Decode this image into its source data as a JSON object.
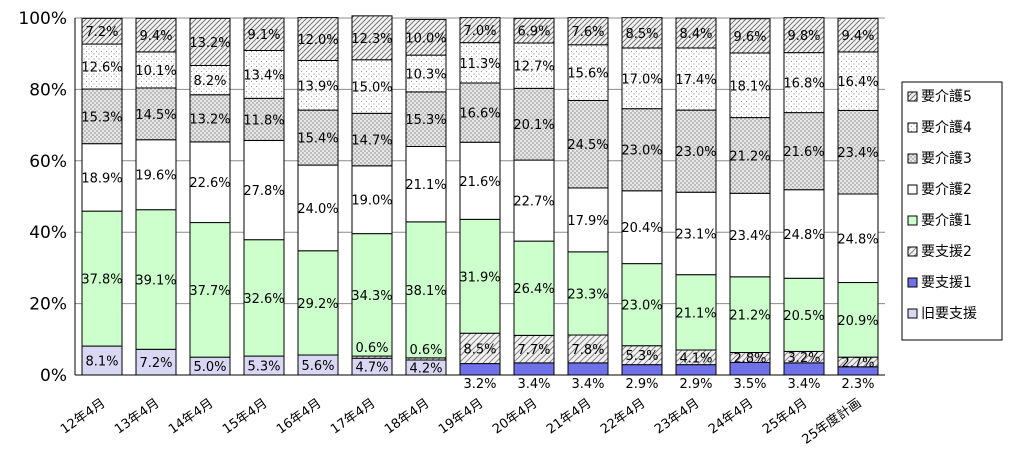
{
  "chart_data": {
    "type": "bar",
    "stacked": true,
    "percent": true,
    "categories": [
      "12年4月",
      "13年4月",
      "14年4月",
      "15年4月",
      "16年4月",
      "17年4月",
      "18年4月",
      "19年4月",
      "20年4月",
      "21年4月",
      "22年4月",
      "23年4月",
      "24年4月",
      "25年4月",
      "25年度計画"
    ],
    "series": [
      {
        "name": "旧要支援",
        "color": "#d8d8f4",
        "pattern": "solid",
        "values": [
          8.1,
          7.2,
          5.0,
          5.3,
          5.6,
          4.7,
          4.2,
          null,
          null,
          null,
          null,
          null,
          null,
          null,
          null
        ],
        "labels": [
          "8.1%",
          "7.2%",
          "5.0%",
          "5.3%",
          "5.6%",
          "4.7%",
          "4.2%",
          "",
          "",
          "",
          "",
          "",
          "",
          "",
          ""
        ]
      },
      {
        "name": "要支援1",
        "color": "#7070e8",
        "pattern": "solid",
        "values": [
          null,
          null,
          null,
          null,
          null,
          null,
          null,
          3.2,
          3.4,
          3.4,
          2.9,
          2.9,
          3.5,
          3.4,
          2.3
        ],
        "labels": [
          "",
          "",
          "",
          "",
          "",
          "",
          "",
          "3.2%",
          "3.4%",
          "3.4%",
          "2.9%",
          "2.9%",
          "3.5%",
          "3.4%",
          "2.3%"
        ]
      },
      {
        "name": "要支援2",
        "color": "#e8e8e8",
        "pattern": "hatch",
        "values": [
          null,
          null,
          null,
          null,
          null,
          0.6,
          0.6,
          8.5,
          7.7,
          7.8,
          5.3,
          4.1,
          2.8,
          3.2,
          2.7
        ],
        "labels": [
          "",
          "",
          "",
          "",
          "",
          "0.6%",
          "0.6%",
          "8.5%",
          "7.7%",
          "7.8%",
          "5.3%",
          "4.1%",
          "2.8%",
          "3.2%",
          "2.7%"
        ]
      },
      {
        "name": "要介護1",
        "color": "#ccffcc",
        "pattern": "solid",
        "values": [
          37.8,
          39.1,
          37.7,
          32.6,
          29.2,
          34.3,
          38.1,
          31.9,
          26.4,
          23.3,
          23.0,
          21.1,
          21.2,
          20.5,
          20.9
        ],
        "labels": [
          "37.8%",
          "39.1%",
          "37.7%",
          "32.6%",
          "29.2%",
          "34.3%",
          "38.1%",
          "31.9%",
          "26.4%",
          "23.3%",
          "23.0%",
          "21.1%",
          "21.2%",
          "20.5%",
          "20.9%"
        ]
      },
      {
        "name": "要介護2",
        "color": "#ffffff",
        "pattern": "solid",
        "values": [
          18.9,
          19.6,
          22.6,
          27.8,
          24.0,
          19.0,
          21.1,
          21.6,
          22.7,
          17.9,
          20.4,
          23.1,
          23.4,
          24.8,
          24.8
        ],
        "labels": [
          "18.9%",
          "19.6%",
          "22.6%",
          "27.8%",
          "24.0%",
          "19.0%",
          "21.1%",
          "21.6%",
          "22.7%",
          "17.9%",
          "20.4%",
          "23.1%",
          "23.4%",
          "24.8%",
          "24.8%"
        ]
      },
      {
        "name": "要介護3",
        "color": "#c8c8c8",
        "pattern": "grid",
        "values": [
          15.3,
          14.5,
          13.2,
          11.8,
          15.4,
          14.7,
          15.3,
          16.6,
          20.1,
          24.5,
          23.0,
          23.0,
          21.2,
          21.6,
          23.4
        ],
        "labels": [
          "15.3%",
          "14.5%",
          "13.2%",
          "11.8%",
          "15.4%",
          "14.7%",
          "15.3%",
          "16.6%",
          "20.1%",
          "24.5%",
          "23.0%",
          "23.0%",
          "21.2%",
          "21.6%",
          "23.4%"
        ]
      },
      {
        "name": "要介護4",
        "color": "#ffffff",
        "pattern": "dots",
        "values": [
          12.6,
          10.1,
          8.2,
          13.4,
          13.9,
          15.0,
          10.3,
          11.3,
          12.7,
          15.6,
          17.0,
          17.4,
          18.1,
          16.8,
          16.4
        ],
        "labels": [
          "12.6%",
          "10.1%",
          "8.2%",
          "13.4%",
          "13.9%",
          "15.0%",
          "10.3%",
          "11.3%",
          "12.7%",
          "15.6%",
          "17.0%",
          "17.4%",
          "18.1%",
          "16.8%",
          "16.4%"
        ]
      },
      {
        "name": "要介護5",
        "color": "#eeeeee",
        "pattern": "diag",
        "values": [
          7.2,
          9.4,
          13.2,
          9.1,
          12.0,
          12.3,
          10.0,
          7.0,
          6.9,
          7.6,
          8.5,
          8.4,
          9.6,
          9.8,
          9.4
        ],
        "labels": [
          "7.2%",
          "9.4%",
          "13.2%",
          "9.1%",
          "12.0%",
          "12.3%",
          "10.0%",
          "7.0%",
          "6.9%",
          "7.6%",
          "8.5%",
          "8.4%",
          "9.6%",
          "9.8%",
          "9.4%"
        ]
      }
    ],
    "yticks": [
      "0%",
      "20%",
      "40%",
      "60%",
      "80%",
      "100%"
    ],
    "ylim": [
      0,
      100
    ],
    "grid": true,
    "legend_position": "right",
    "legend_order": [
      "要介護5",
      "要介護4",
      "要介護3",
      "要介護2",
      "要介護1",
      "要支援2",
      "要支援1",
      "旧要支援"
    ]
  }
}
